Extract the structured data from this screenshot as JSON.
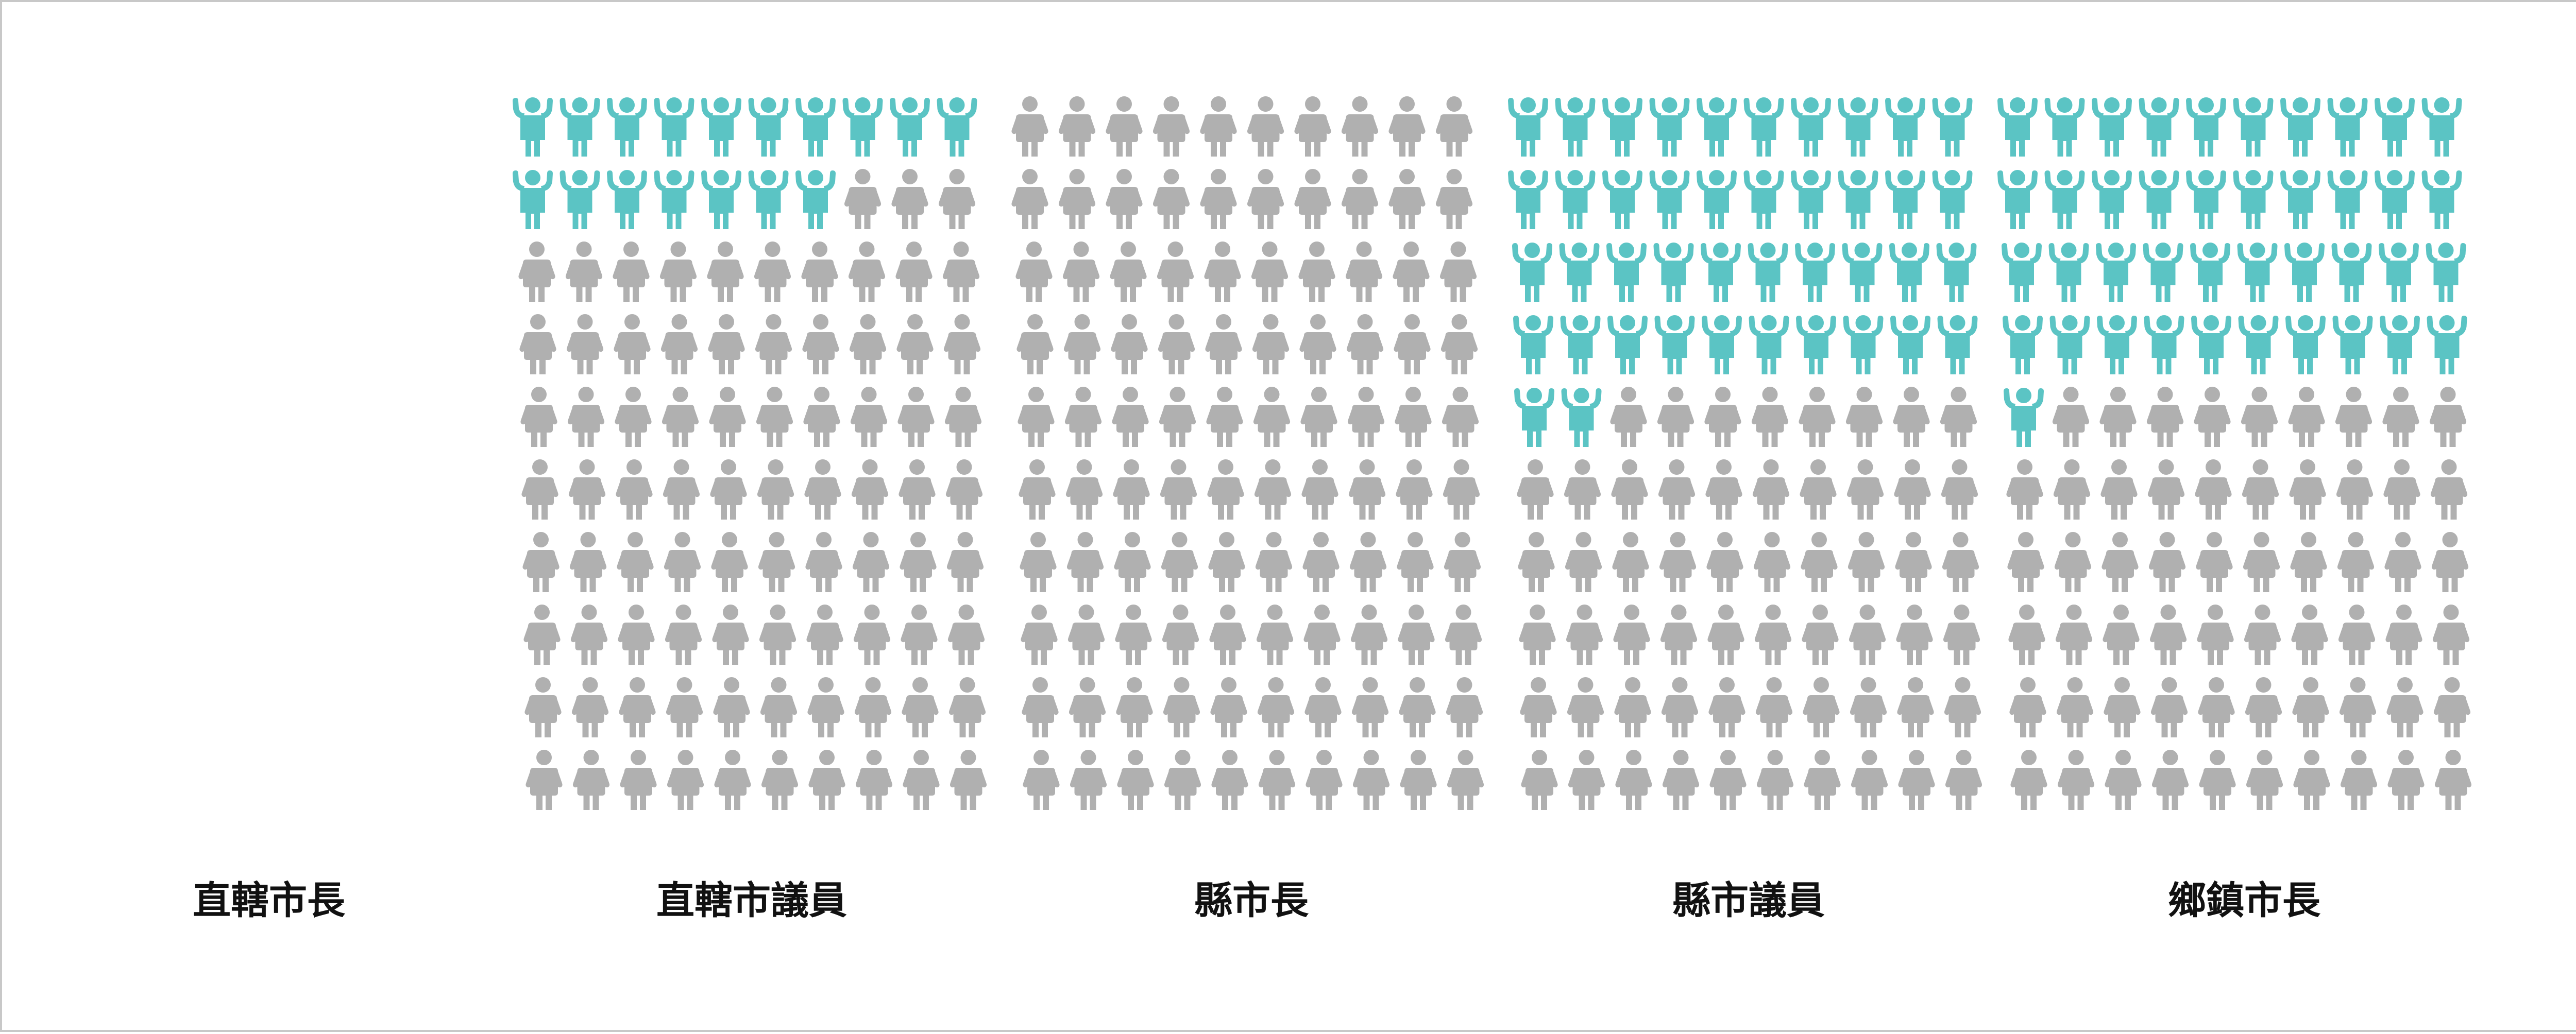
{
  "chart_data": {
    "type": "pictogram",
    "unit_per_icon": 1,
    "icons_per_panel": 100,
    "rows_per_panel": 10,
    "cols_per_panel": 10,
    "categories": [
      "直轄市長",
      "直轄市議員",
      "縣市長",
      "縣市議員",
      "鄉鎮市長"
    ],
    "values": [
      0,
      17,
      0,
      42,
      41
    ],
    "colors": {
      "highlight": "#5bc4c4",
      "base": "#b0b0b0"
    },
    "icon": "person-icon"
  }
}
